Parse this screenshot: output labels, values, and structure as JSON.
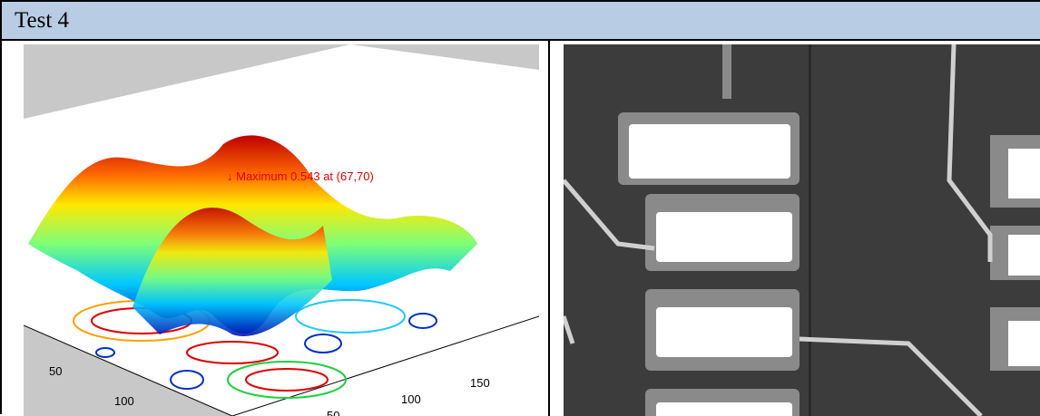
{
  "header": {
    "title": "Test 4"
  },
  "left_image": {
    "annotation": "↓ Maximum 0.543 at (67,70)",
    "axis_labels": [
      "50",
      "100",
      "150",
      "100",
      "50"
    ]
  }
}
